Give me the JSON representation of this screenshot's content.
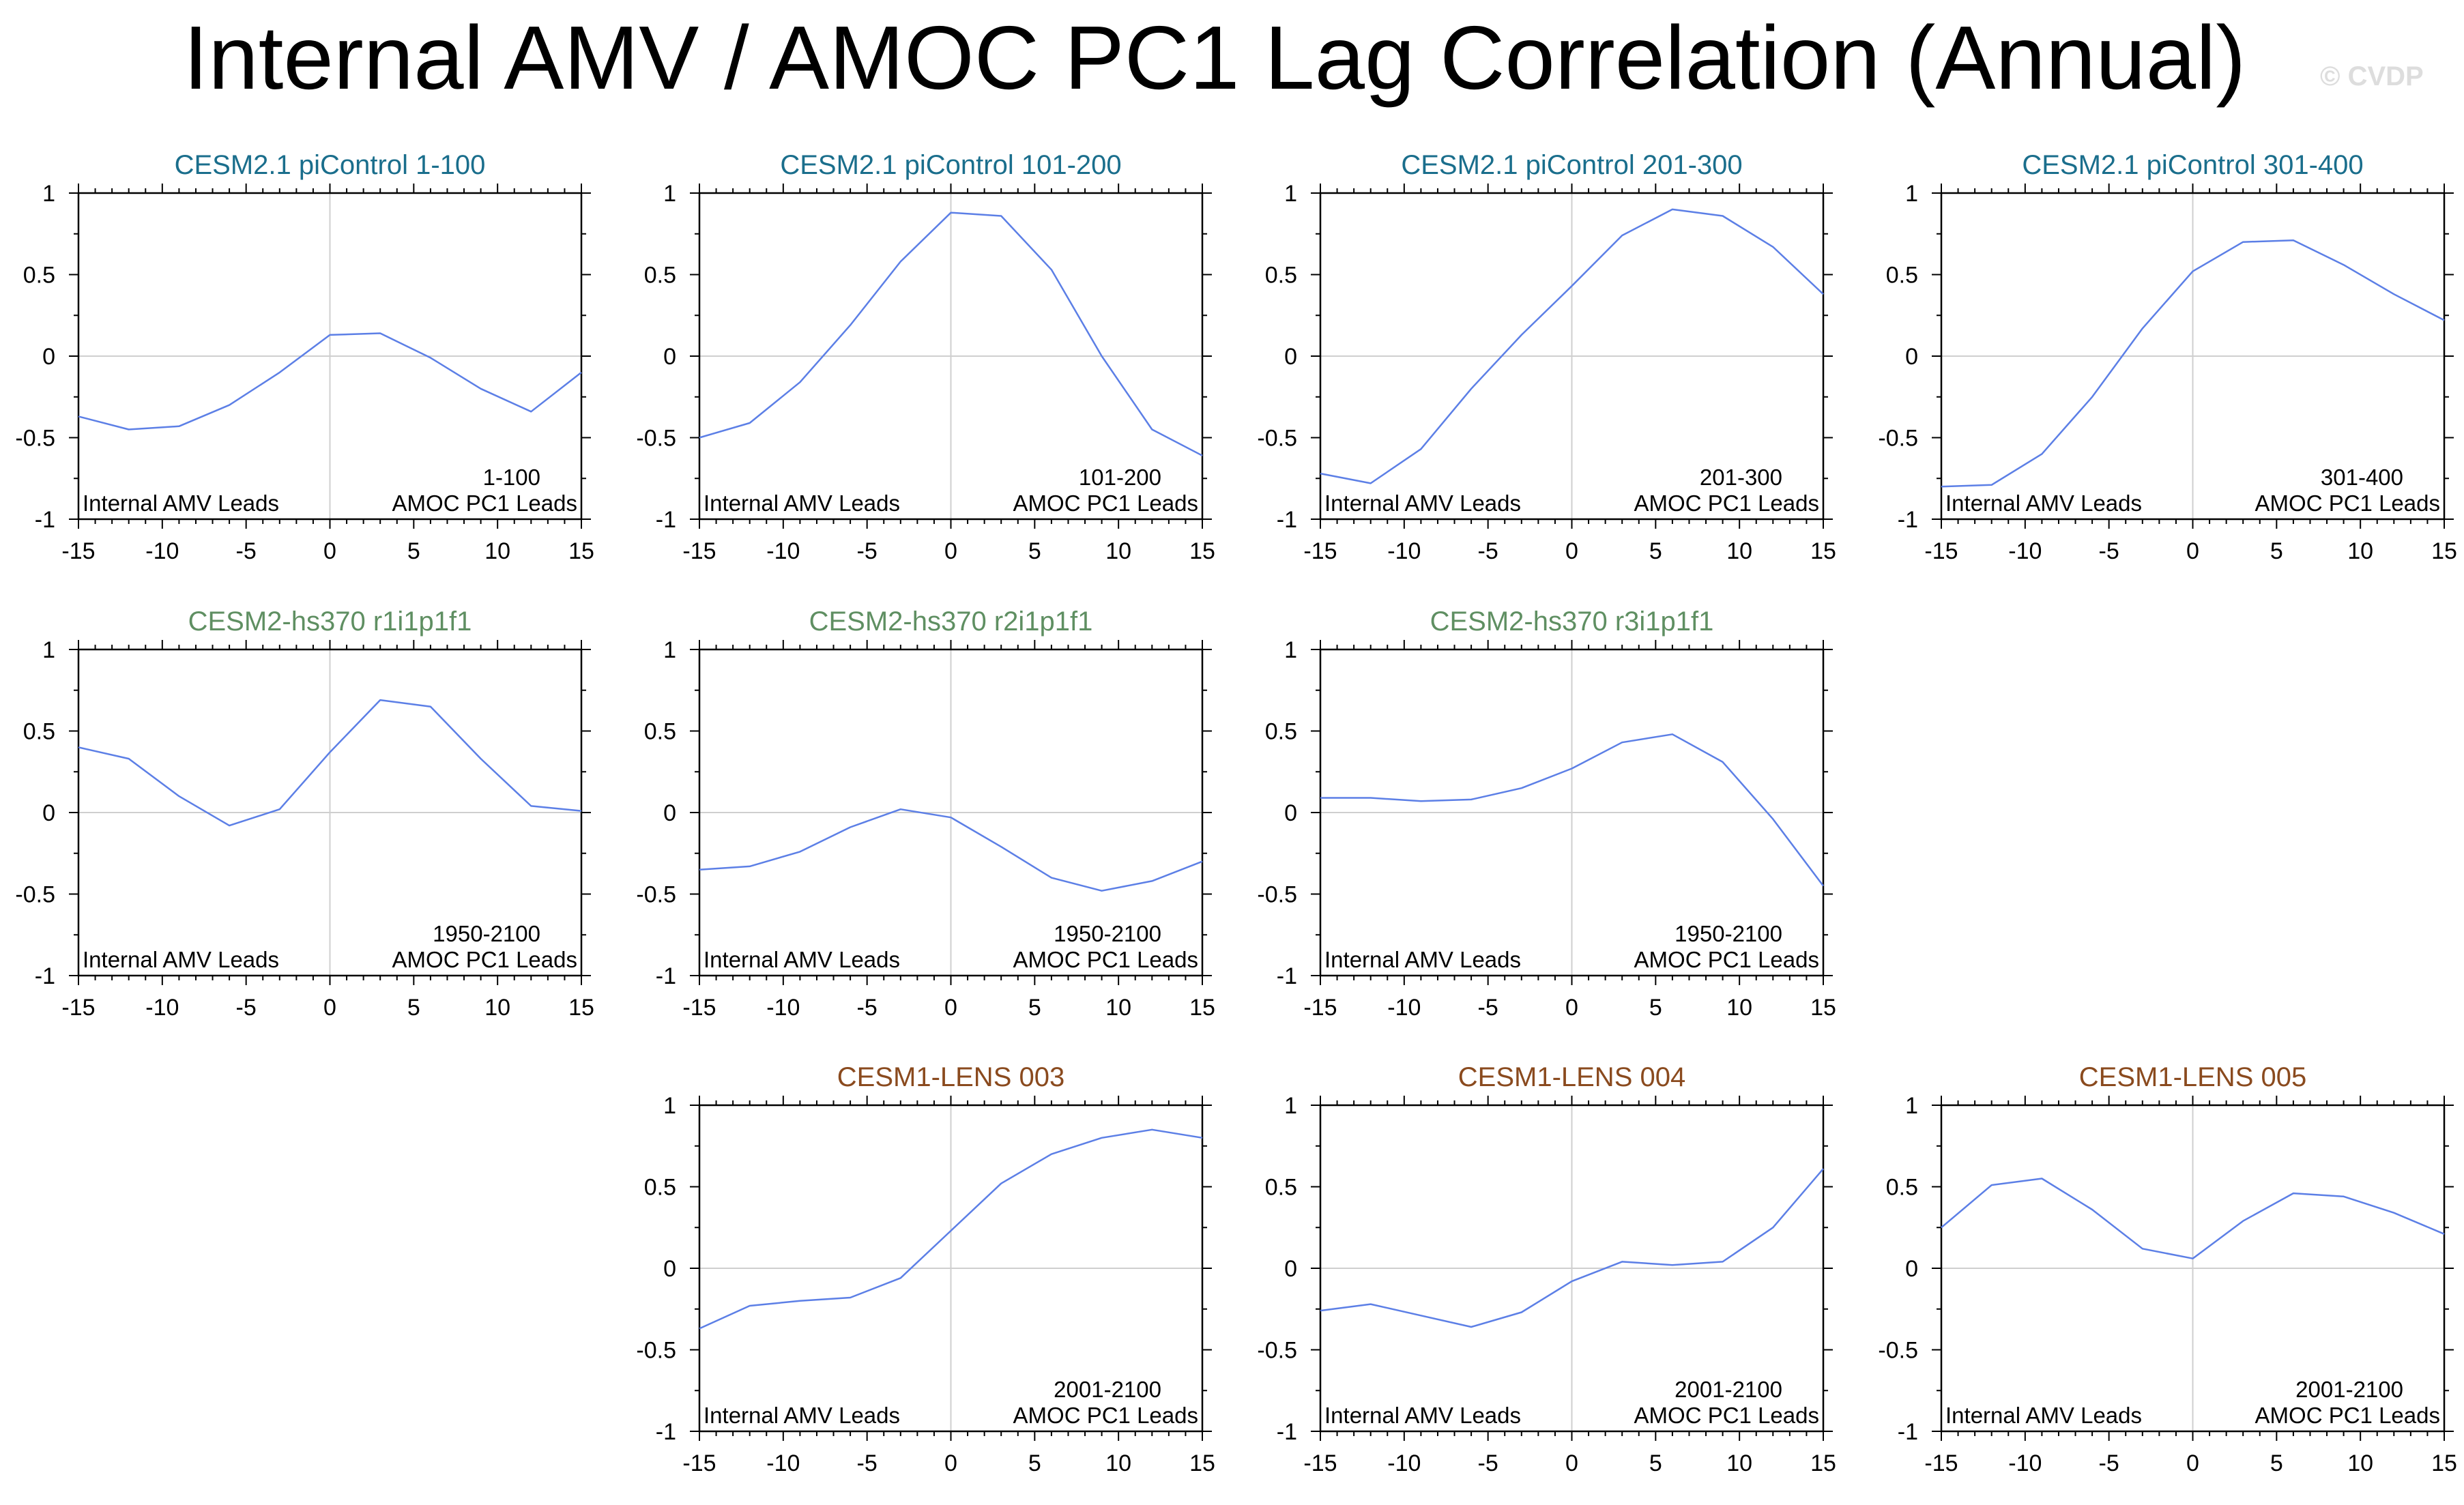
{
  "figure": {
    "title": "Internal AMV / AMOC PC1 Lag Correlation (Annual)",
    "watermark": "© CVDP",
    "left_annotation": "Internal AMV Leads",
    "right_annotation": "AMOC PC1 Leads",
    "colors": {
      "line": "#5c7fe6",
      "grid": "#cfcfcf",
      "group_picontrol": "#1a6e8c",
      "group_hs370": "#5f8f62",
      "group_lens": "#8a4a1e"
    }
  },
  "chart_data": [
    {
      "type": "line",
      "title": "CESM2.1 piControl 1-100",
      "group": "picontrol",
      "period": "1-100",
      "x": [
        -15,
        -12,
        -9,
        -6,
        -3,
        0,
        3,
        6,
        9,
        12,
        15
      ],
      "y": [
        -0.37,
        -0.45,
        -0.43,
        -0.3,
        -0.1,
        0.13,
        0.14,
        -0.01,
        -0.2,
        -0.34,
        -0.1
      ],
      "xlim": [
        -15,
        15
      ],
      "ylim": [
        -1,
        1
      ],
      "xticks": [
        "-15",
        "-10",
        "-5",
        "0",
        "5",
        "10",
        "15"
      ],
      "yticks": [
        "-1",
        "-0.5",
        "0",
        "0.5",
        "1"
      ]
    },
    {
      "type": "line",
      "title": "CESM2.1 piControl 101-200",
      "group": "picontrol",
      "period": "101-200",
      "x": [
        -15,
        -12,
        -9,
        -6,
        -3,
        0,
        3,
        6,
        9,
        12,
        15
      ],
      "y": [
        -0.5,
        -0.41,
        -0.16,
        0.19,
        0.58,
        0.88,
        0.86,
        0.53,
        0.0,
        -0.45,
        -0.61
      ],
      "xlim": [
        -15,
        15
      ],
      "ylim": [
        -1,
        1
      ],
      "xticks": [
        "-15",
        "-10",
        "-5",
        "0",
        "5",
        "10",
        "15"
      ],
      "yticks": [
        "-1",
        "-0.5",
        "0",
        "0.5",
        "1"
      ]
    },
    {
      "type": "line",
      "title": "CESM2.1 piControl 201-300",
      "group": "picontrol",
      "period": "201-300",
      "x": [
        -15,
        -12,
        -9,
        -6,
        -3,
        0,
        3,
        6,
        9,
        12,
        15
      ],
      "y": [
        -0.72,
        -0.78,
        -0.57,
        -0.2,
        0.13,
        0.43,
        0.74,
        0.9,
        0.86,
        0.67,
        0.38
      ],
      "xlim": [
        -15,
        15
      ],
      "ylim": [
        -1,
        1
      ],
      "xticks": [
        "-15",
        "-10",
        "-5",
        "0",
        "5",
        "10",
        "15"
      ],
      "yticks": [
        "-1",
        "-0.5",
        "0",
        "0.5",
        "1"
      ]
    },
    {
      "type": "line",
      "title": "CESM2.1 piControl 301-400",
      "group": "picontrol",
      "period": "301-400",
      "x": [
        -15,
        -12,
        -9,
        -6,
        -3,
        0,
        3,
        6,
        9,
        12,
        15
      ],
      "y": [
        -0.8,
        -0.79,
        -0.6,
        -0.25,
        0.17,
        0.52,
        0.7,
        0.71,
        0.56,
        0.38,
        0.22
      ],
      "xlim": [
        -15,
        15
      ],
      "ylim": [
        -1,
        1
      ],
      "xticks": [
        "-15",
        "-10",
        "-5",
        "0",
        "5",
        "10",
        "15"
      ],
      "yticks": [
        "-1",
        "-0.5",
        "0",
        "0.5",
        "1"
      ]
    },
    {
      "type": "line",
      "title": "CESM2-hs370 r1i1p1f1",
      "group": "hs370",
      "period": "1950-2100",
      "x": [
        -15,
        -12,
        -9,
        -6,
        -3,
        0,
        3,
        6,
        9,
        12,
        15
      ],
      "y": [
        0.4,
        0.33,
        0.1,
        -0.08,
        0.02,
        0.37,
        0.69,
        0.65,
        0.33,
        0.04,
        0.01
      ],
      "xlim": [
        -15,
        15
      ],
      "ylim": [
        -1,
        1
      ],
      "xticks": [
        "-15",
        "-10",
        "-5",
        "0",
        "5",
        "10",
        "15"
      ],
      "yticks": [
        "-1",
        "-0.5",
        "0",
        "0.5",
        "1"
      ]
    },
    {
      "type": "line",
      "title": "CESM2-hs370 r2i1p1f1",
      "group": "hs370",
      "period": "1950-2100",
      "x": [
        -15,
        -12,
        -9,
        -6,
        -3,
        0,
        3,
        6,
        9,
        12,
        15
      ],
      "y": [
        -0.35,
        -0.33,
        -0.24,
        -0.09,
        0.02,
        -0.03,
        -0.21,
        -0.4,
        -0.48,
        -0.42,
        -0.3
      ],
      "xlim": [
        -15,
        15
      ],
      "ylim": [
        -1,
        1
      ],
      "xticks": [
        "-15",
        "-10",
        "-5",
        "0",
        "5",
        "10",
        "15"
      ],
      "yticks": [
        "-1",
        "-0.5",
        "0",
        "0.5",
        "1"
      ]
    },
    {
      "type": "line",
      "title": "CESM2-hs370 r3i1p1f1",
      "group": "hs370",
      "period": "1950-2100",
      "x": [
        -15,
        -12,
        -9,
        -6,
        -3,
        0,
        3,
        6,
        9,
        12,
        15
      ],
      "y": [
        0.09,
        0.09,
        0.07,
        0.08,
        0.15,
        0.27,
        0.43,
        0.48,
        0.31,
        -0.04,
        -0.45
      ],
      "xlim": [
        -15,
        15
      ],
      "ylim": [
        -1,
        1
      ],
      "xticks": [
        "-15",
        "-10",
        "-5",
        "0",
        "5",
        "10",
        "15"
      ],
      "yticks": [
        "-1",
        "-0.5",
        "0",
        "0.5",
        "1"
      ]
    },
    {
      "type": "line",
      "title": "CESM1-LENS 003",
      "group": "lens",
      "period": "2001-2100",
      "x": [
        -15,
        -12,
        -9,
        -6,
        -3,
        0,
        3,
        6,
        9,
        12,
        15
      ],
      "y": [
        -0.37,
        -0.23,
        -0.2,
        -0.18,
        -0.06,
        0.23,
        0.52,
        0.7,
        0.8,
        0.85,
        0.8
      ],
      "xlim": [
        -15,
        15
      ],
      "ylim": [
        -1,
        1
      ],
      "xticks": [
        "-15",
        "-10",
        "-5",
        "0",
        "5",
        "10",
        "15"
      ],
      "yticks": [
        "-1",
        "-0.5",
        "0",
        "0.5",
        "1"
      ]
    },
    {
      "type": "line",
      "title": "CESM1-LENS 004",
      "group": "lens",
      "period": "2001-2100",
      "x": [
        -15,
        -12,
        -9,
        -6,
        -3,
        0,
        3,
        6,
        9,
        12,
        15
      ],
      "y": [
        -0.26,
        -0.22,
        -0.29,
        -0.36,
        -0.27,
        -0.08,
        0.04,
        0.02,
        0.04,
        0.25,
        0.61
      ],
      "xlim": [
        -15,
        15
      ],
      "ylim": [
        -1,
        1
      ],
      "xticks": [
        "-15",
        "-10",
        "-5",
        "0",
        "5",
        "10",
        "15"
      ],
      "yticks": [
        "-1",
        "-0.5",
        "0",
        "0.5",
        "1"
      ]
    },
    {
      "type": "line",
      "title": "CESM1-LENS 005",
      "group": "lens",
      "period": "2001-2100",
      "x": [
        -15,
        -12,
        -9,
        -6,
        -3,
        0,
        3,
        6,
        9,
        12,
        15
      ],
      "y": [
        0.25,
        0.51,
        0.55,
        0.36,
        0.12,
        0.06,
        0.29,
        0.46,
        0.44,
        0.34,
        0.21
      ],
      "xlim": [
        -15,
        15
      ],
      "ylim": [
        -1,
        1
      ],
      "xticks": [
        "-15",
        "-10",
        "-5",
        "0",
        "5",
        "10",
        "15"
      ],
      "yticks": [
        "-1",
        "-0.5",
        "0",
        "0.5",
        "1"
      ]
    }
  ]
}
